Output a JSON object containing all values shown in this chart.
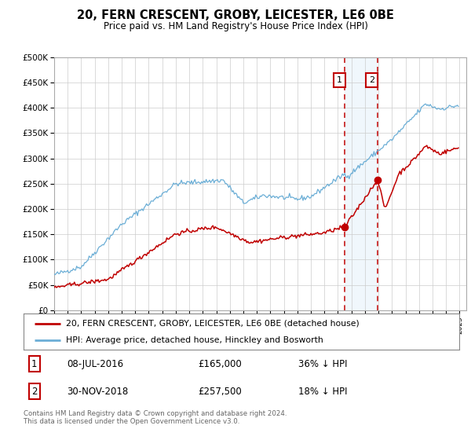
{
  "title": "20, FERN CRESCENT, GROBY, LEICESTER, LE6 0BE",
  "subtitle": "Price paid vs. HM Land Registry's House Price Index (HPI)",
  "legend_line1": "20, FERN CRESCENT, GROBY, LEICESTER, LE6 0BE (detached house)",
  "legend_line2": "HPI: Average price, detached house, Hinckley and Bosworth",
  "annotation1_date": "08-JUL-2016",
  "annotation1_price": "£165,000",
  "annotation1_text": "36% ↓ HPI",
  "annotation1_year": 2016.52,
  "annotation1_value": 165000,
  "annotation2_date": "30-NOV-2018",
  "annotation2_price": "£257,500",
  "annotation2_text": "18% ↓ HPI",
  "annotation2_year": 2018.92,
  "annotation2_value": 257500,
  "footer": "Contains HM Land Registry data © Crown copyright and database right 2024.\nThis data is licensed under the Open Government Licence v3.0.",
  "hpi_color": "#6BAED6",
  "price_color": "#C00000",
  "dot_color": "#C00000",
  "background_color": "#ffffff",
  "grid_color": "#cccccc",
  "ylim": [
    0,
    500000
  ],
  "yticks": [
    0,
    50000,
    100000,
    150000,
    200000,
    250000,
    300000,
    350000,
    400000,
    450000,
    500000
  ],
  "xlim_start": 1995.0,
  "xlim_end": 2025.5,
  "highlight_start": 2016.52,
  "highlight_end": 2018.92
}
